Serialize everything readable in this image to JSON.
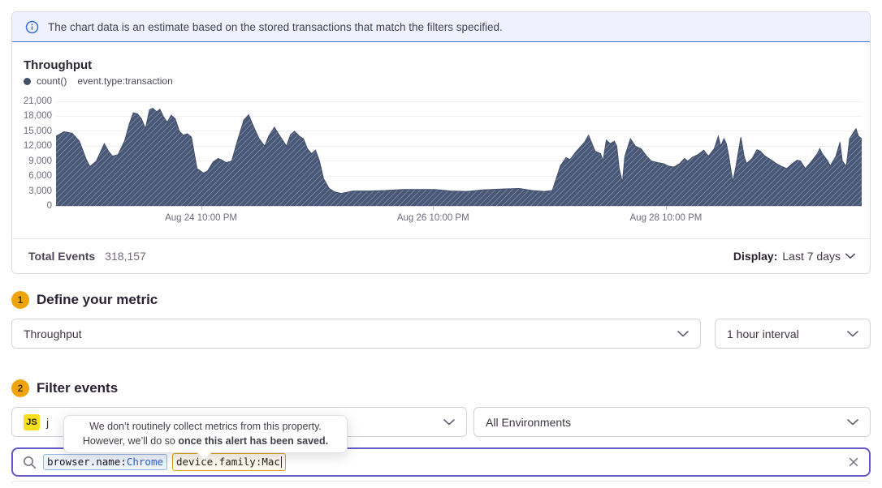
{
  "banner": {
    "text": "The chart data is an estimate based on the stored transactions that match the filters specified."
  },
  "chart_panel": {
    "title": "Throughput",
    "legend": {
      "series_label": "count()",
      "query_label": "event.type:transaction"
    },
    "footer": {
      "total_label": "Total Events",
      "total_value": "318,157",
      "display_label": "Display:",
      "display_value": "Last 7 days"
    }
  },
  "chart_data": {
    "type": "area",
    "title": "Throughput",
    "ylabel": "",
    "xlabel": "",
    "ylim": [
      0,
      21000
    ],
    "grid": "horizontal",
    "legend_position": "top-left",
    "fill_color": "#4A5878",
    "hatch_color": "#99A2B5",
    "yticks": [
      0,
      3000,
      6000,
      9000,
      12000,
      15000,
      18000,
      21000
    ],
    "ytick_labels": [
      "0",
      "3,000",
      "6,000",
      "9,000",
      "12,000",
      "15,000",
      "18,000",
      "21,000"
    ],
    "xticks": [
      {
        "pos": 0.18,
        "label": "Aug 24 10:00 PM"
      },
      {
        "pos": 0.468,
        "label": "Aug 26 10:00 PM"
      },
      {
        "pos": 0.757,
        "label": "Aug 28 10:00 PM"
      }
    ],
    "series": [
      {
        "name": "count() event.type:transaction",
        "points": [
          [
            0.0,
            14000
          ],
          [
            0.01,
            14900
          ],
          [
            0.02,
            14600
          ],
          [
            0.029,
            13000
          ],
          [
            0.037,
            9500
          ],
          [
            0.042,
            7900
          ],
          [
            0.05,
            9000
          ],
          [
            0.06,
            12500
          ],
          [
            0.065,
            11000
          ],
          [
            0.07,
            10000
          ],
          [
            0.077,
            10300
          ],
          [
            0.085,
            13000
          ],
          [
            0.091,
            16500
          ],
          [
            0.096,
            18700
          ],
          [
            0.101,
            18500
          ],
          [
            0.106,
            17500
          ],
          [
            0.111,
            15500
          ],
          [
            0.116,
            19300
          ],
          [
            0.12,
            19600
          ],
          [
            0.125,
            18900
          ],
          [
            0.129,
            19400
          ],
          [
            0.133,
            18000
          ],
          [
            0.138,
            16800
          ],
          [
            0.143,
            18200
          ],
          [
            0.148,
            17500
          ],
          [
            0.153,
            15000
          ],
          [
            0.158,
            14200
          ],
          [
            0.163,
            14500
          ],
          [
            0.168,
            13800
          ],
          [
            0.175,
            7500
          ],
          [
            0.183,
            6600
          ],
          [
            0.188,
            7000
          ],
          [
            0.195,
            8800
          ],
          [
            0.201,
            9500
          ],
          [
            0.205,
            9300
          ],
          [
            0.211,
            8700
          ],
          [
            0.218,
            9000
          ],
          [
            0.225,
            13000
          ],
          [
            0.233,
            17200
          ],
          [
            0.239,
            18300
          ],
          [
            0.245,
            16000
          ],
          [
            0.252,
            13500
          ],
          [
            0.259,
            12000
          ],
          [
            0.264,
            14000
          ],
          [
            0.271,
            15800
          ],
          [
            0.276,
            14500
          ],
          [
            0.282,
            13000
          ],
          [
            0.286,
            12000
          ],
          [
            0.291,
            14300
          ],
          [
            0.296,
            15000
          ],
          [
            0.302,
            14000
          ],
          [
            0.307,
            13500
          ],
          [
            0.312,
            11500
          ],
          [
            0.317,
            10500
          ],
          [
            0.322,
            11200
          ],
          [
            0.327,
            9000
          ],
          [
            0.332,
            5500
          ],
          [
            0.339,
            3500
          ],
          [
            0.346,
            2800
          ],
          [
            0.354,
            2500
          ],
          [
            0.369,
            3000
          ],
          [
            0.389,
            3000
          ],
          [
            0.409,
            3100
          ],
          [
            0.43,
            3300
          ],
          [
            0.45,
            3300
          ],
          [
            0.47,
            3300
          ],
          [
            0.49,
            3000
          ],
          [
            0.51,
            2900
          ],
          [
            0.53,
            3200
          ],
          [
            0.555,
            3400
          ],
          [
            0.575,
            3500
          ],
          [
            0.591,
            3100
          ],
          [
            0.606,
            2900
          ],
          [
            0.616,
            3100
          ],
          [
            0.626,
            8000
          ],
          [
            0.633,
            9700
          ],
          [
            0.638,
            9300
          ],
          [
            0.646,
            11000
          ],
          [
            0.656,
            12800
          ],
          [
            0.661,
            14200
          ],
          [
            0.669,
            11000
          ],
          [
            0.676,
            10500
          ],
          [
            0.679,
            9000
          ],
          [
            0.683,
            13200
          ],
          [
            0.688,
            12500
          ],
          [
            0.693,
            13000
          ],
          [
            0.696,
            12000
          ],
          [
            0.699,
            7500
          ],
          [
            0.703,
            4700
          ],
          [
            0.706,
            10000
          ],
          [
            0.713,
            13500
          ],
          [
            0.719,
            12000
          ],
          [
            0.726,
            11500
          ],
          [
            0.733,
            10000
          ],
          [
            0.739,
            9000
          ],
          [
            0.747,
            8700
          ],
          [
            0.754,
            8500
          ],
          [
            0.76,
            8000
          ],
          [
            0.767,
            7800
          ],
          [
            0.774,
            8500
          ],
          [
            0.78,
            9500
          ],
          [
            0.784,
            9000
          ],
          [
            0.79,
            9800
          ],
          [
            0.797,
            10300
          ],
          [
            0.804,
            11200
          ],
          [
            0.807,
            10500
          ],
          [
            0.81,
            10000
          ],
          [
            0.817,
            11500
          ],
          [
            0.822,
            14000
          ],
          [
            0.825,
            12000
          ],
          [
            0.829,
            13500
          ],
          [
            0.832,
            12500
          ],
          [
            0.835,
            10000
          ],
          [
            0.84,
            4800
          ],
          [
            0.844,
            8000
          ],
          [
            0.85,
            13800
          ],
          [
            0.854,
            10000
          ],
          [
            0.857,
            8500
          ],
          [
            0.864,
            9500
          ],
          [
            0.87,
            11300
          ],
          [
            0.874,
            11000
          ],
          [
            0.88,
            10000
          ],
          [
            0.887,
            9300
          ],
          [
            0.894,
            8500
          ],
          [
            0.9,
            8000
          ],
          [
            0.907,
            7500
          ],
          [
            0.914,
            8500
          ],
          [
            0.92,
            9200
          ],
          [
            0.924,
            9000
          ],
          [
            0.93,
            7500
          ],
          [
            0.938,
            9000
          ],
          [
            0.945,
            10500
          ],
          [
            0.948,
            11500
          ],
          [
            0.951,
            10500
          ],
          [
            0.958,
            9000
          ],
          [
            0.961,
            8000
          ],
          [
            0.968,
            10000
          ],
          [
            0.973,
            12800
          ],
          [
            0.976,
            9000
          ],
          [
            0.981,
            8000
          ],
          [
            0.985,
            13500
          ],
          [
            0.99,
            14800
          ],
          [
            0.993,
            15500
          ],
          [
            0.996,
            14000
          ],
          [
            1.0,
            13500
          ]
        ]
      }
    ]
  },
  "sections": {
    "metric": {
      "number": "1",
      "title": "Define your metric",
      "metric_select": "Throughput",
      "interval_select": "1 hour interval"
    },
    "filter": {
      "number": "2",
      "title": "Filter events",
      "project_badge": "JS",
      "project_name": "j",
      "environment_select": "All Environments"
    }
  },
  "tooltip": {
    "line1": "We don’t routinely collect metrics from this property.",
    "line2_prefix": "However, we’ll do so ",
    "line2_bold": "once this alert has been saved."
  },
  "search": {
    "tokens": [
      {
        "key": "browser.name:",
        "value": "Chrome"
      },
      {
        "key": "device.family:",
        "value": "Mac"
      }
    ]
  },
  "colors": {
    "accent_purple": "#6458C6",
    "banner_blue": "#3D74DB",
    "step_badge": "#EFA40B",
    "js_yellow": "#F7DF1E",
    "token_blue_border": "#93B2E4",
    "token_amber_border": "#D8A411",
    "chart_fill": "#4A5878"
  }
}
